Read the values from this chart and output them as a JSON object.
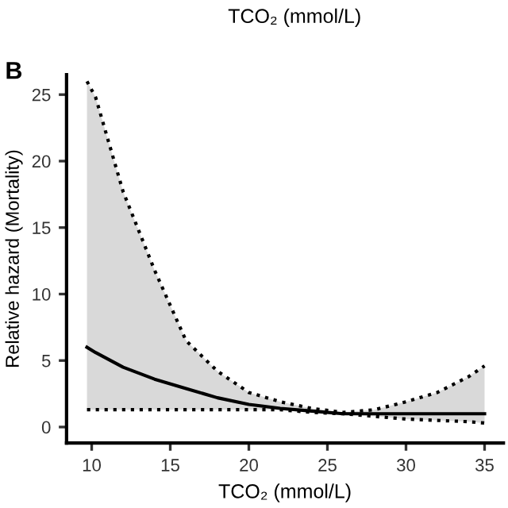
{
  "chart_data": {
    "type": "line",
    "title": "B",
    "xlabel": "TCO₂ (mmol/L)",
    "ylabel": "Relative hazard (Mortality)",
    "annotations": [
      "TCO₂ (mmol/L)"
    ],
    "series": [
      {
        "color": "#000000",
        "line_style": "solid",
        "x": [
          9.7,
          10.25,
          12,
          14,
          16,
          18,
          20,
          22,
          24,
          26,
          28,
          30,
          32,
          34,
          35
        ],
        "values": [
          6.0,
          5.6,
          4.5,
          3.6,
          2.9,
          2.2,
          1.7,
          1.4,
          1.2,
          1.0,
          1.0,
          1.0,
          1.0,
          1.0,
          1.0
        ],
        "lower": [
          1.3,
          1.3,
          1.3,
          1.3,
          1.3,
          1.3,
          1.3,
          1.3,
          1.1,
          1.0,
          0.8,
          0.6,
          0.5,
          0.4,
          0.3
        ],
        "upper": [
          26.0,
          24.8,
          17.7,
          11.8,
          6.5,
          4.2,
          2.6,
          1.9,
          1.4,
          1.1,
          1.3,
          1.9,
          2.6,
          3.8,
          4.6
        ]
      },
      {
        "color": "#000000",
        "line_style": "dotted",
        "x": [
          9.7,
          10.25,
          12,
          14,
          16,
          18,
          20,
          22,
          24,
          26,
          28,
          30,
          32,
          34,
          35
        ],
        "values": [
          26.0,
          24.8,
          17.7,
          11.8,
          6.5,
          4.2,
          2.6,
          1.9,
          1.4,
          1.1,
          1.3,
          1.9,
          2.6,
          3.8,
          4.6
        ]
      },
      {
        "color": "#000000",
        "line_style": "dotted",
        "x": [
          9.7,
          10.25,
          12,
          14,
          16,
          18,
          20,
          22,
          24,
          26,
          28,
          30,
          32,
          34,
          35
        ],
        "values": [
          1.3,
          1.3,
          1.3,
          1.3,
          1.3,
          1.3,
          1.3,
          1.3,
          1.1,
          1.0,
          0.8,
          0.6,
          0.5,
          0.4,
          0.3
        ]
      }
    ],
    "xlim": [
      8.4,
      36.2
    ],
    "ylim": [
      -1.2,
      26.5
    ],
    "xticks": [
      10,
      15,
      20,
      25,
      30,
      35
    ],
    "yticks": [
      0,
      5,
      10,
      15,
      20,
      25
    ],
    "grid": false,
    "legend": false,
    "marker": "none"
  }
}
